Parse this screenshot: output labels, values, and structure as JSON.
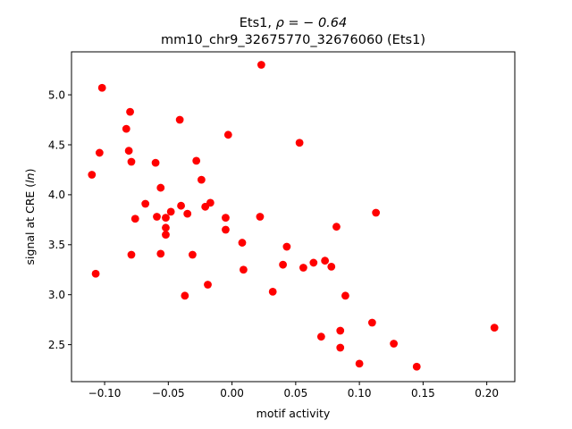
{
  "chart_data": {
    "type": "scatter",
    "title_line1_prefix": "Ets1, ",
    "title_line1_rho": "ρ = − 0.64",
    "title_line2": "mm10_chr9_32675770_32676060 (Ets1)",
    "xlabel": "motif activity",
    "ylabel_prefix": "signal at CRE (",
    "ylabel_italic": "ln",
    "ylabel_suffix": ")",
    "xlim": [
      -0.126,
      0.222
    ],
    "ylim": [
      2.13,
      5.43
    ],
    "xticks": [
      -0.1,
      -0.05,
      0.0,
      0.05,
      0.1,
      0.15,
      0.2
    ],
    "xtick_labels": [
      "−0.10",
      "−0.05",
      "0.00",
      "0.05",
      "0.10",
      "0.15",
      "0.20"
    ],
    "yticks": [
      2.5,
      3.0,
      3.5,
      4.0,
      4.5,
      5.0
    ],
    "ytick_labels": [
      "2.5",
      "3.0",
      "3.5",
      "4.0",
      "4.5",
      "5.0"
    ],
    "marker_color": "#ff0000",
    "grid": false,
    "points": [
      [
        -0.102,
        5.07
      ],
      [
        -0.08,
        4.83
      ],
      [
        -0.083,
        4.66
      ],
      [
        -0.104,
        4.42
      ],
      [
        -0.081,
        4.44
      ],
      [
        -0.079,
        4.33
      ],
      [
        -0.11,
        4.2
      ],
      [
        -0.107,
        3.21
      ],
      [
        -0.079,
        3.4
      ],
      [
        -0.076,
        3.76
      ],
      [
        -0.068,
        3.91
      ],
      [
        -0.059,
        3.78
      ],
      [
        -0.06,
        4.32
      ],
      [
        -0.056,
        4.07
      ],
      [
        -0.056,
        3.41
      ],
      [
        -0.052,
        3.77
      ],
      [
        -0.052,
        3.67
      ],
      [
        -0.052,
        3.6
      ],
      [
        -0.048,
        3.83
      ],
      [
        -0.041,
        4.75
      ],
      [
        -0.04,
        3.89
      ],
      [
        -0.035,
        3.81
      ],
      [
        -0.037,
        2.99
      ],
      [
        -0.031,
        3.4
      ],
      [
        -0.028,
        4.34
      ],
      [
        -0.024,
        4.15
      ],
      [
        -0.021,
        3.88
      ],
      [
        -0.017,
        3.92
      ],
      [
        -0.019,
        3.1
      ],
      [
        -0.005,
        3.77
      ],
      [
        -0.005,
        3.65
      ],
      [
        -0.003,
        4.6
      ],
      [
        0.008,
        3.52
      ],
      [
        0.009,
        3.25
      ],
      [
        0.022,
        3.78
      ],
      [
        0.023,
        5.3
      ],
      [
        0.032,
        3.03
      ],
      [
        0.04,
        3.3
      ],
      [
        0.043,
        3.48
      ],
      [
        0.053,
        4.52
      ],
      [
        0.056,
        3.27
      ],
      [
        0.064,
        3.32
      ],
      [
        0.07,
        2.58
      ],
      [
        0.073,
        3.34
      ],
      [
        0.078,
        3.28
      ],
      [
        0.082,
        3.68
      ],
      [
        0.085,
        2.64
      ],
      [
        0.085,
        2.47
      ],
      [
        0.089,
        2.99
      ],
      [
        0.1,
        2.31
      ],
      [
        0.11,
        2.72
      ],
      [
        0.113,
        3.82
      ],
      [
        0.127,
        2.51
      ],
      [
        0.145,
        2.28
      ],
      [
        0.206,
        2.67
      ]
    ]
  }
}
